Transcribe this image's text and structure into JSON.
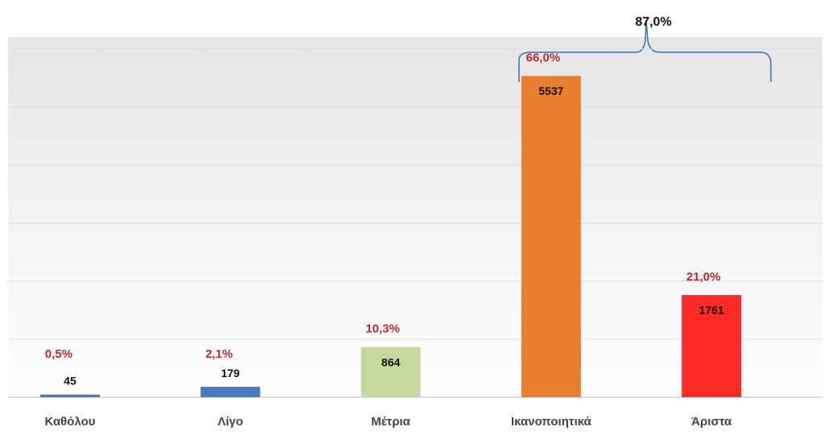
{
  "chart_data": {
    "type": "bar",
    "categories": [
      "Καθόλου",
      "Λίγο",
      "Μέτρια",
      "Ικανοποιητικά",
      "Άριστα"
    ],
    "values": [
      45,
      179,
      864,
      5537,
      1761
    ],
    "percent_labels": [
      "0,5%",
      "2,1%",
      "10,3%",
      "66,0%",
      "21,0%"
    ],
    "colors": [
      "#4a78c0",
      "#4a78c0",
      "#c6d99c",
      "#ea7f30",
      "#fb2a26"
    ],
    "annotation": "87,0%",
    "ylim": [
      0,
      6000
    ],
    "yticks": [
      0,
      1000,
      2000,
      3000,
      4000,
      5000,
      6000
    ],
    "grid": true
  }
}
